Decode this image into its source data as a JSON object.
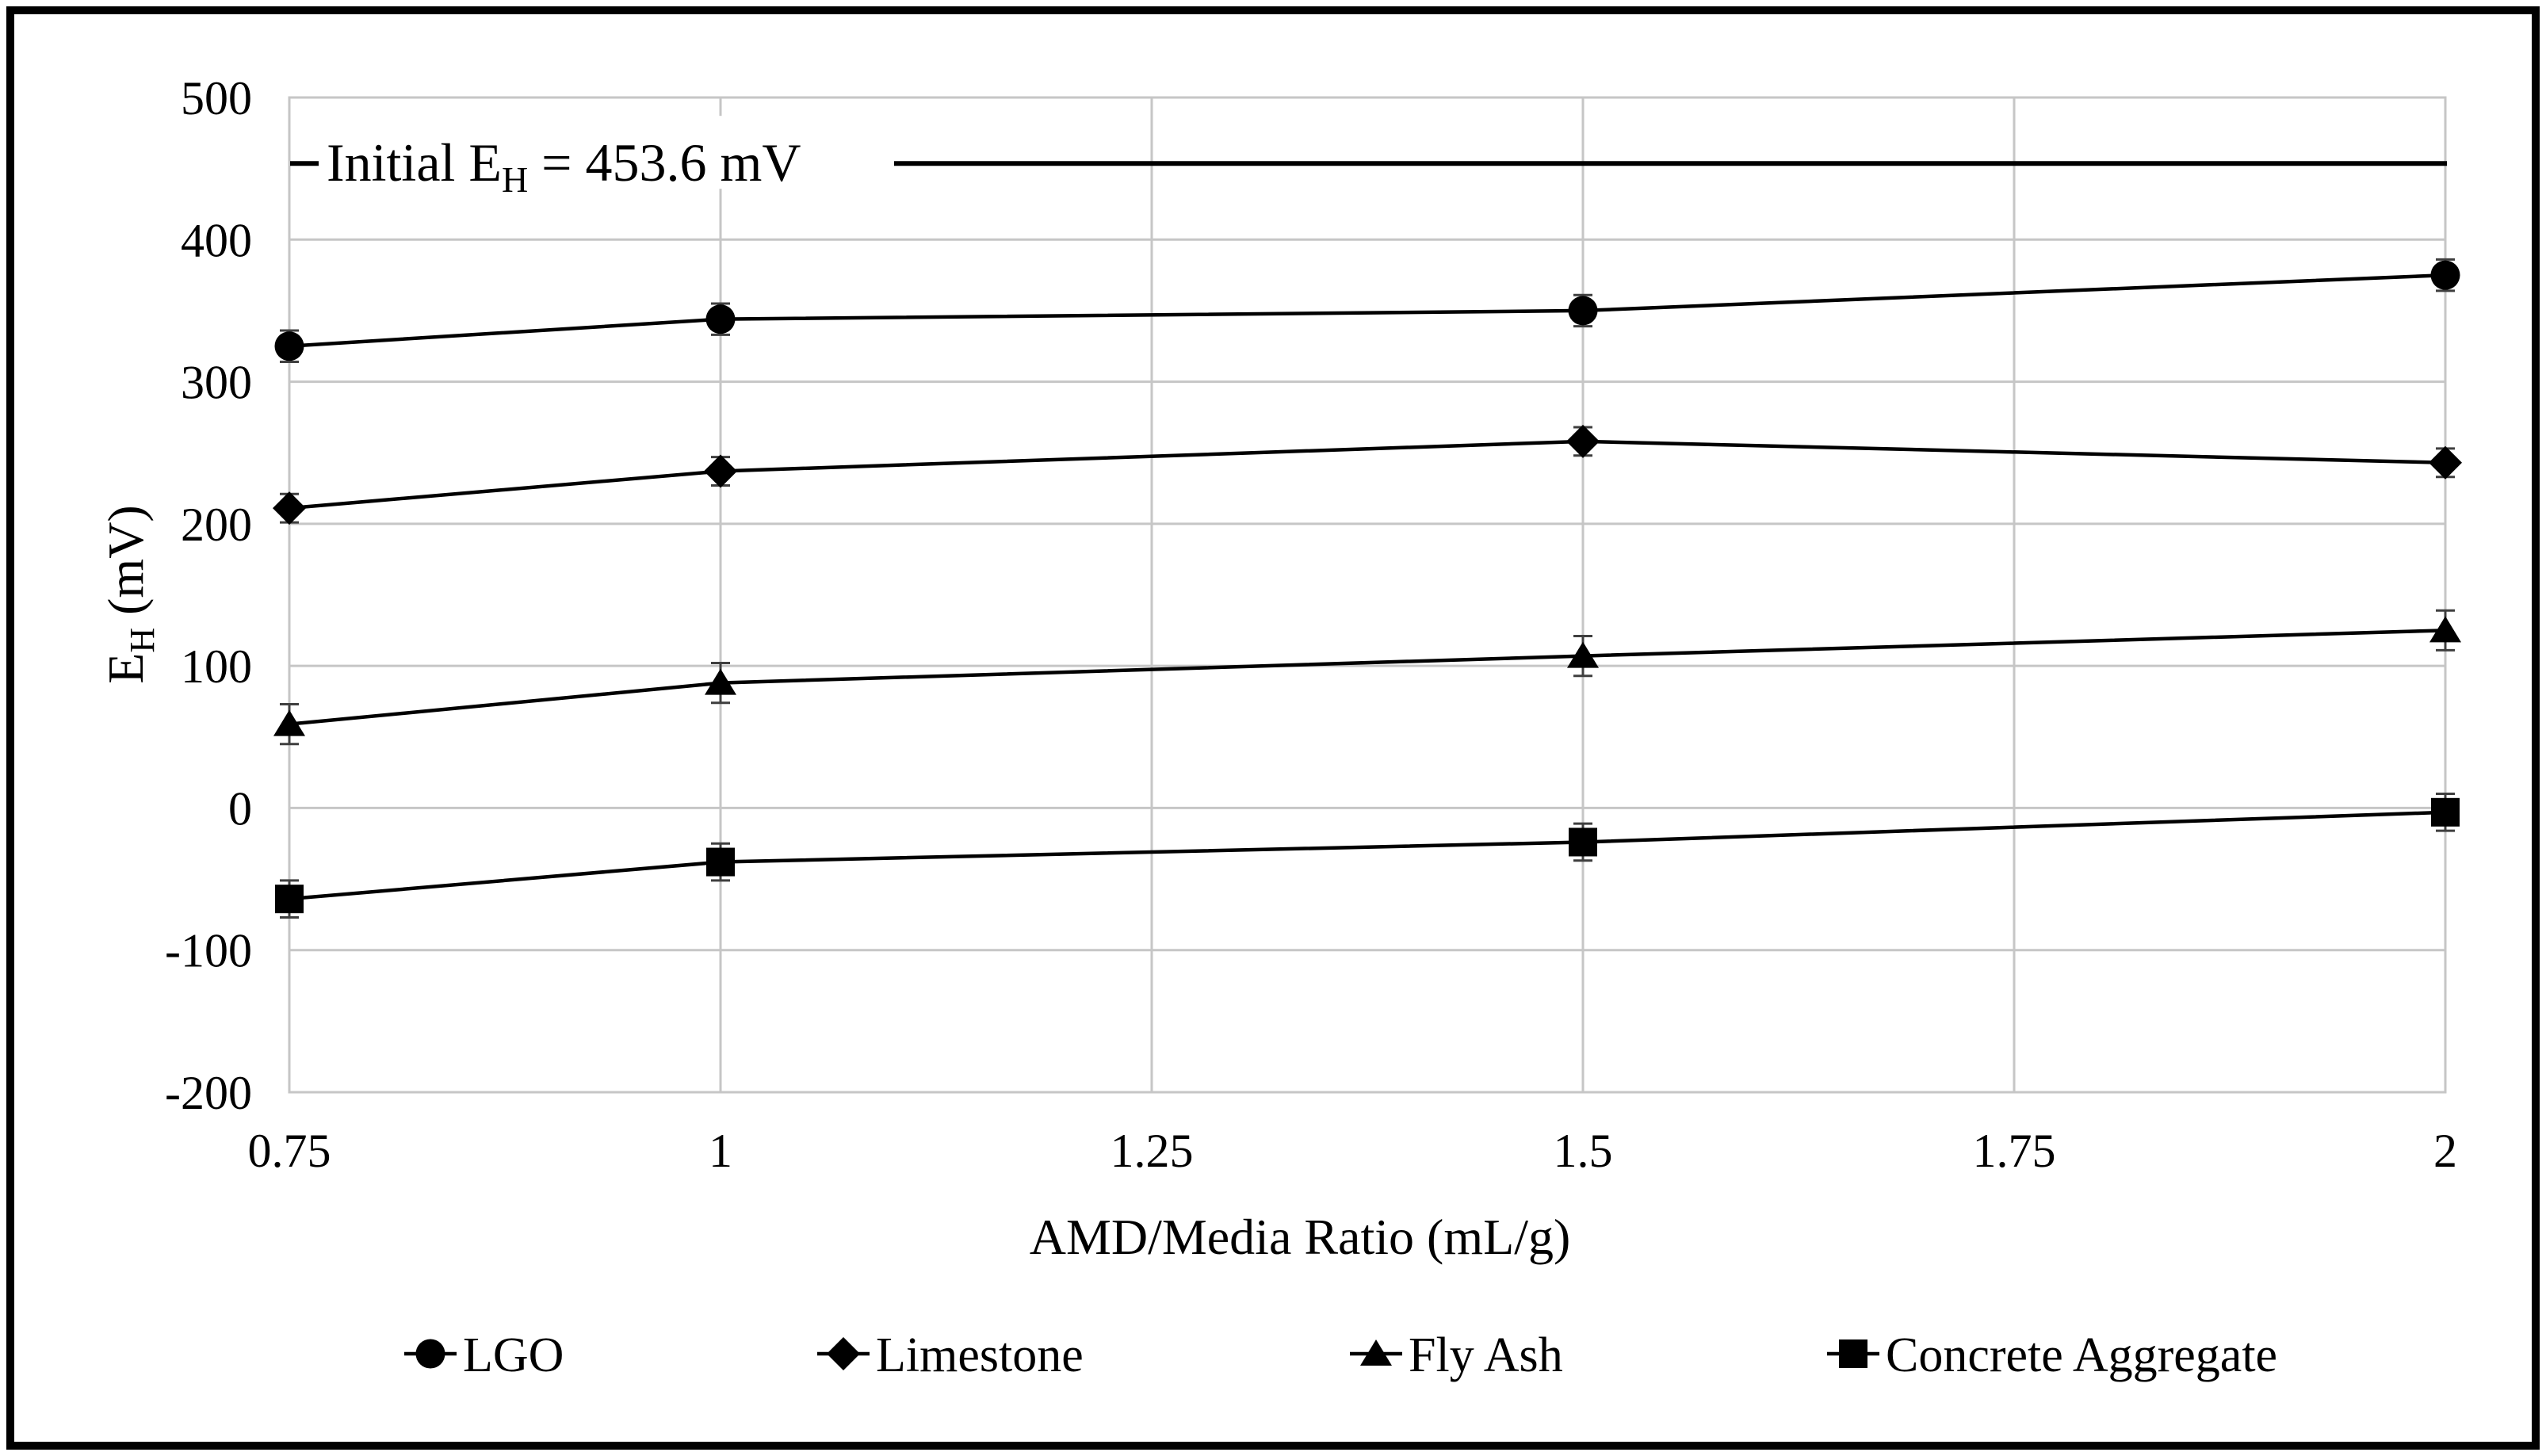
{
  "figure": {
    "background": "#ffffff",
    "border_color": "#000000"
  },
  "colors": {
    "series": "#000000",
    "grid": "#c6c6c6",
    "error_bar": "#3f3f3f",
    "text": "#000000"
  },
  "chart_data": {
    "type": "line",
    "title": "",
    "xlabel": "AMD/Media Ratio (mL/g)",
    "ylabel_parts": {
      "prefix": "E",
      "sub": "H",
      "suffix": " (mV)"
    },
    "xlim": [
      0.75,
      2
    ],
    "ylim": [
      -200,
      500
    ],
    "grid": true,
    "legend_position": "bottom",
    "x_tick_labels": [
      "0.75",
      "1",
      "1.25",
      "1.5",
      "1.75",
      "2"
    ],
    "x_tick_values": [
      0.75,
      1,
      1.25,
      1.5,
      1.75,
      2
    ],
    "y_tick_labels": [
      "500",
      "400",
      "300",
      "200",
      "100",
      "0",
      "-100",
      "-200"
    ],
    "y_tick_values": [
      500,
      400,
      300,
      200,
      100,
      0,
      -100,
      -200
    ],
    "x": [
      0.75,
      1,
      1.5,
      2
    ],
    "series": [
      {
        "name": "LGO",
        "marker": "circle",
        "values": [
          325,
          344,
          350,
          375
        ],
        "error_mv": 11
      },
      {
        "name": "Limestone",
        "marker": "diamond",
        "values": [
          211,
          237,
          258,
          243
        ],
        "error_mv": 10
      },
      {
        "name": "Fly Ash",
        "marker": "triangle",
        "values": [
          59,
          88,
          107,
          125
        ],
        "error_mv": 14
      },
      {
        "name": "Concrete Aggregate",
        "marker": "square",
        "values": [
          -64,
          -38,
          -24,
          -3
        ],
        "error_mv": 13
      }
    ],
    "annotation": {
      "line_value": 453.6,
      "label_parts": {
        "prefix": "Initial E",
        "sub": "H",
        "suffix": " = 453.6 mV"
      }
    }
  }
}
